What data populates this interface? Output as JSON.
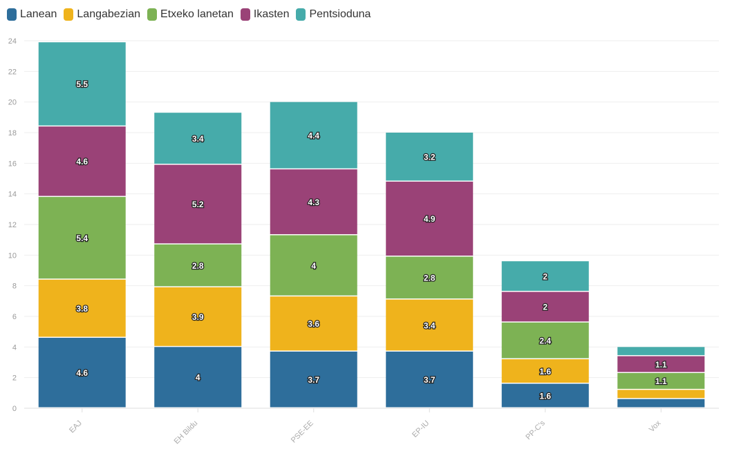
{
  "chart_data": {
    "type": "bar",
    "stacked": true,
    "title": "",
    "xlabel": "",
    "ylabel": "",
    "ylim": [
      0,
      24
    ],
    "yticks": [
      0,
      2,
      4,
      6,
      8,
      10,
      12,
      14,
      16,
      18,
      20,
      22,
      24
    ],
    "grid": true,
    "legend_position": "top-left",
    "categories": [
      "EAJ",
      "EH Bildu",
      "PSE-EE",
      "EP-IU",
      "PP-C's",
      "Vox"
    ],
    "series": [
      {
        "name": "Lanean",
        "color": "#2e6e9b",
        "values": [
          4.6,
          4,
          3.7,
          3.7,
          1.6,
          0.6
        ]
      },
      {
        "name": "Langabezian",
        "color": "#efb31c",
        "values": [
          3.8,
          3.9,
          3.6,
          3.4,
          1.6,
          0.6
        ]
      },
      {
        "name": "Etxeko lanetan",
        "color": "#7db254",
        "values": [
          5.4,
          2.8,
          4,
          2.8,
          2.4,
          1.1
        ]
      },
      {
        "name": "Ikasten",
        "color": "#9a4277",
        "values": [
          4.6,
          5.2,
          4.3,
          4.9,
          2,
          1.1
        ]
      },
      {
        "name": "Pentsioduna",
        "color": "#46abaa",
        "values": [
          5.5,
          3.4,
          4.4,
          3.2,
          2,
          0.6
        ]
      }
    ]
  }
}
